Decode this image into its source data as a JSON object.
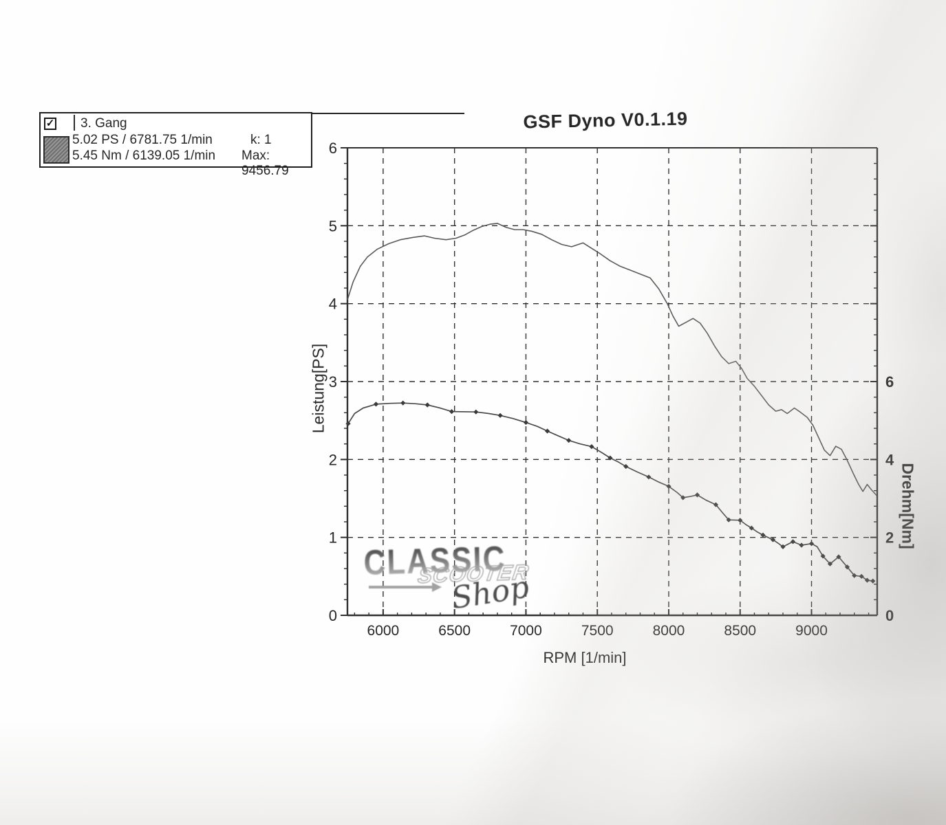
{
  "legend": {
    "checkbox_checked": true,
    "checkbox_glyph": "✓",
    "gear": "3. Gang",
    "power_line": "5.02 PS / 6781.75 1/min",
    "k_line": "k: 1",
    "torque_line": "5.45 Nm / 6139.05 1/min",
    "max_line": "Max: 9456.79"
  },
  "watermark": {
    "word1": "CLASSIC",
    "word2": "SCOOTER",
    "word3": "Shop"
  },
  "colors": {
    "ink": "#262626",
    "grid": "#2e2e2e",
    "curve_power": "#585858",
    "curve_torque": "#4a4a4a",
    "marker": "#3a3a3a",
    "watermark_gray": "#9a9a9a"
  },
  "chart_data": {
    "type": "line",
    "title": "GSF Dyno V0.1.19",
    "xlabel": "RPM [1/min]",
    "ylabel_left": "Leistung[PS]",
    "ylabel_right": "Drehm[Nm]",
    "xlim": [
      5750,
      9460
    ],
    "ylim_left": [
      0,
      6
    ],
    "ylim_right": [
      0,
      12
    ],
    "x_ticks": [
      6000,
      6500,
      7000,
      7500,
      8000,
      8500,
      9000
    ],
    "y_ticks_left": [
      0,
      1,
      2,
      3,
      4,
      5,
      6
    ],
    "y_ticks_right": [
      0,
      2,
      4,
      6
    ],
    "grid": true,
    "legend_position": "outside-top-left",
    "series": [
      {
        "name": "Leistung",
        "axis": "left",
        "unit": "PS",
        "marker": false,
        "points": [
          [
            5750,
            4.05
          ],
          [
            5790,
            4.28
          ],
          [
            5840,
            4.48
          ],
          [
            5890,
            4.6
          ],
          [
            5960,
            4.7
          ],
          [
            6040,
            4.77
          ],
          [
            6120,
            4.82
          ],
          [
            6210,
            4.85
          ],
          [
            6290,
            4.87
          ],
          [
            6360,
            4.84
          ],
          [
            6440,
            4.82
          ],
          [
            6510,
            4.84
          ],
          [
            6570,
            4.88
          ],
          [
            6630,
            4.94
          ],
          [
            6690,
            4.99
          ],
          [
            6750,
            5.02
          ],
          [
            6800,
            5.03
          ],
          [
            6860,
            4.98
          ],
          [
            6920,
            4.95
          ],
          [
            6980,
            4.95
          ],
          [
            7040,
            4.93
          ],
          [
            7110,
            4.89
          ],
          [
            7180,
            4.82
          ],
          [
            7250,
            4.76
          ],
          [
            7320,
            4.73
          ],
          [
            7400,
            4.78
          ],
          [
            7460,
            4.71
          ],
          [
            7520,
            4.64
          ],
          [
            7590,
            4.55
          ],
          [
            7660,
            4.48
          ],
          [
            7730,
            4.43
          ],
          [
            7800,
            4.38
          ],
          [
            7870,
            4.33
          ],
          [
            7930,
            4.19
          ],
          [
            7990,
            4.0
          ],
          [
            8030,
            3.84
          ],
          [
            8070,
            3.71
          ],
          [
            8120,
            3.76
          ],
          [
            8170,
            3.81
          ],
          [
            8220,
            3.75
          ],
          [
            8270,
            3.62
          ],
          [
            8320,
            3.46
          ],
          [
            8370,
            3.32
          ],
          [
            8420,
            3.23
          ],
          [
            8470,
            3.26
          ],
          [
            8510,
            3.17
          ],
          [
            8550,
            3.04
          ],
          [
            8600,
            2.94
          ],
          [
            8650,
            2.82
          ],
          [
            8700,
            2.7
          ],
          [
            8750,
            2.62
          ],
          [
            8790,
            2.64
          ],
          [
            8830,
            2.59
          ],
          [
            8880,
            2.66
          ],
          [
            8920,
            2.61
          ],
          [
            8970,
            2.54
          ],
          [
            9010,
            2.44
          ],
          [
            9050,
            2.28
          ],
          [
            9090,
            2.12
          ],
          [
            9130,
            2.05
          ],
          [
            9170,
            2.17
          ],
          [
            9210,
            2.13
          ],
          [
            9250,
            1.99
          ],
          [
            9290,
            1.83
          ],
          [
            9330,
            1.68
          ],
          [
            9360,
            1.59
          ],
          [
            9390,
            1.68
          ],
          [
            9420,
            1.61
          ],
          [
            9455,
            1.54
          ]
        ]
      },
      {
        "name": "Drehmoment",
        "axis": "right",
        "unit": "Nm",
        "marker": true,
        "points": [
          [
            5755,
            4.92,
            1
          ],
          [
            5800,
            5.18,
            0
          ],
          [
            5860,
            5.32,
            0
          ],
          [
            5950,
            5.42,
            1
          ],
          [
            6050,
            5.44,
            0
          ],
          [
            6139,
            5.45,
            1
          ],
          [
            6230,
            5.43,
            0
          ],
          [
            6310,
            5.4,
            1
          ],
          [
            6400,
            5.32,
            0
          ],
          [
            6480,
            5.23,
            1
          ],
          [
            6650,
            5.22,
            1
          ],
          [
            6740,
            5.18,
            0
          ],
          [
            6820,
            5.13,
            1
          ],
          [
            6910,
            5.05,
            0
          ],
          [
            7000,
            4.95,
            1
          ],
          [
            7080,
            4.85,
            0
          ],
          [
            7150,
            4.73,
            1
          ],
          [
            7230,
            4.6,
            0
          ],
          [
            7300,
            4.49,
            1
          ],
          [
            7380,
            4.4,
            0
          ],
          [
            7460,
            4.33,
            1
          ],
          [
            7530,
            4.18,
            0
          ],
          [
            7590,
            4.04,
            1
          ],
          [
            7650,
            3.93,
            0
          ],
          [
            7700,
            3.82,
            1
          ],
          [
            7780,
            3.68,
            0
          ],
          [
            7860,
            3.55,
            1
          ],
          [
            7930,
            3.42,
            0
          ],
          [
            8000,
            3.31,
            1
          ],
          [
            8060,
            3.15,
            0
          ],
          [
            8100,
            3.02,
            1
          ],
          [
            8150,
            3.05,
            0
          ],
          [
            8200,
            3.09,
            1
          ],
          [
            8260,
            2.96,
            0
          ],
          [
            8330,
            2.84,
            1
          ],
          [
            8380,
            2.62,
            0
          ],
          [
            8420,
            2.45,
            1
          ],
          [
            8500,
            2.44,
            1
          ],
          [
            8540,
            2.33,
            0
          ],
          [
            8580,
            2.24,
            1
          ],
          [
            8620,
            2.14,
            0
          ],
          [
            8660,
            2.06,
            1
          ],
          [
            8730,
            1.94,
            1
          ],
          [
            8770,
            1.84,
            0
          ],
          [
            8800,
            1.76,
            1
          ],
          [
            8870,
            1.89,
            1
          ],
          [
            8930,
            1.8,
            1
          ],
          [
            9000,
            1.84,
            1
          ],
          [
            9040,
            1.76,
            0
          ],
          [
            9080,
            1.52,
            1
          ],
          [
            9130,
            1.32,
            1
          ],
          [
            9190,
            1.5,
            1
          ],
          [
            9250,
            1.24,
            1
          ],
          [
            9300,
            1.02,
            1
          ],
          [
            9350,
            1.0,
            1
          ],
          [
            9390,
            0.9,
            1
          ],
          [
            9430,
            0.88,
            1
          ]
        ]
      }
    ]
  }
}
